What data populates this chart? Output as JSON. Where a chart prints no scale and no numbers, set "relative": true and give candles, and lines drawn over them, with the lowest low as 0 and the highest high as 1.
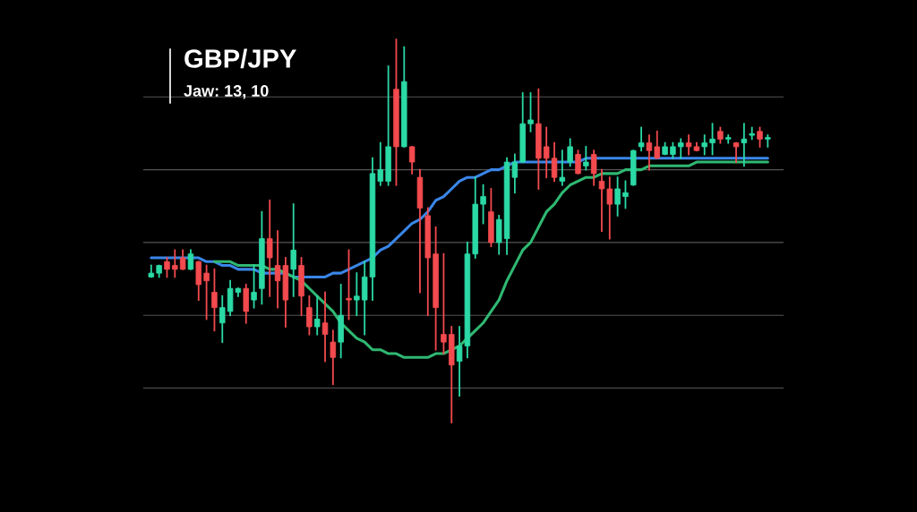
{
  "chart_data": {
    "type": "candlestick",
    "title": "GBP/JPY",
    "subtitle": "Jaw: 13, 10",
    "relative": true,
    "grid": "y",
    "categories": [
      null,
      null,
      null,
      null,
      null,
      null,
      null,
      null,
      null,
      null,
      null,
      null,
      null,
      null,
      null,
      null,
      null,
      null,
      null,
      null,
      null,
      null,
      null,
      null,
      null,
      null,
      null,
      null,
      null,
      null,
      null,
      null,
      null,
      null,
      null,
      null,
      null,
      null,
      null,
      null,
      null,
      null,
      null,
      null,
      null,
      null,
      null,
      null,
      null,
      null,
      null,
      null,
      null,
      null,
      null,
      null,
      null,
      null,
      null,
      null,
      null,
      null,
      null,
      null,
      null,
      null,
      null,
      null,
      null,
      null,
      null,
      null,
      null,
      null,
      null,
      null,
      null,
      null,
      null
    ],
    "ohlc": [
      [
        0.38,
        0.41,
        0.38,
        0.39
      ],
      [
        0.39,
        0.41,
        0.38,
        0.41
      ],
      [
        0.42,
        0.43,
        0.38,
        0.4
      ],
      [
        0.41,
        0.45,
        0.38,
        0.4
      ],
      [
        0.43,
        0.45,
        0.4,
        0.4
      ],
      [
        0.4,
        0.45,
        0.4,
        0.44
      ],
      [
        0.42,
        0.42,
        0.32,
        0.36
      ],
      [
        0.39,
        0.41,
        0.27,
        0.37
      ],
      [
        0.34,
        0.4,
        0.24,
        0.3
      ],
      [
        0.26,
        0.33,
        0.21,
        0.3
      ],
      [
        0.29,
        0.37,
        0.28,
        0.35
      ],
      [
        0.34,
        0.35,
        0.33,
        0.35
      ],
      [
        0.35,
        0.36,
        0.26,
        0.29
      ],
      [
        0.32,
        0.41,
        0.3,
        0.34
      ],
      [
        0.35,
        0.55,
        0.31,
        0.48
      ],
      [
        0.48,
        0.58,
        0.33,
        0.43
      ],
      [
        0.41,
        0.5,
        0.3,
        0.37
      ],
      [
        0.41,
        0.43,
        0.25,
        0.32
      ],
      [
        0.4,
        0.57,
        0.33,
        0.45
      ],
      [
        0.41,
        0.43,
        0.28,
        0.33
      ],
      [
        0.3,
        0.33,
        0.23,
        0.25
      ],
      [
        0.25,
        0.33,
        0.23,
        0.27
      ],
      [
        0.26,
        0.34,
        0.16,
        0.23
      ],
      [
        0.21,
        0.24,
        0.1,
        0.17
      ],
      [
        0.21,
        0.36,
        0.17,
        0.28
      ],
      [
        0.32,
        0.45,
        0.27,
        0.32
      ],
      [
        0.32,
        0.39,
        0.28,
        0.33
      ],
      [
        0.32,
        0.42,
        0.23,
        0.38
      ],
      [
        0.38,
        0.69,
        0.32,
        0.65
      ],
      [
        0.63,
        0.73,
        0.62,
        0.66
      ],
      [
        0.63,
        0.93,
        0.62,
        0.72
      ],
      [
        0.87,
        1.0,
        0.62,
        0.72
      ],
      [
        0.72,
        0.98,
        0.72,
        0.89
      ],
      [
        0.72,
        0.72,
        0.65,
        0.68
      ],
      [
        0.64,
        0.66,
        0.34,
        0.56
      ],
      [
        0.54,
        0.56,
        0.28,
        0.43
      ],
      [
        0.44,
        0.51,
        0.19,
        0.3
      ],
      [
        0.23,
        0.44,
        0.18,
        0.21
      ],
      [
        0.23,
        0.25,
        0.0,
        0.15
      ],
      [
        0.16,
        0.25,
        0.07,
        0.2
      ],
      [
        0.2,
        0.47,
        0.17,
        0.44
      ],
      [
        0.44,
        0.64,
        0.43,
        0.57
      ],
      [
        0.57,
        0.62,
        0.52,
        0.59
      ],
      [
        0.55,
        0.61,
        0.46,
        0.47
      ],
      [
        0.47,
        0.54,
        0.44,
        0.53
      ],
      [
        0.48,
        0.69,
        0.44,
        0.68
      ],
      [
        0.64,
        0.7,
        0.6,
        0.68
      ],
      [
        0.68,
        0.86,
        0.68,
        0.78
      ],
      [
        0.78,
        0.86,
        0.76,
        0.79
      ],
      [
        0.78,
        0.87,
        0.61,
        0.69
      ],
      [
        0.72,
        0.77,
        0.64,
        0.69
      ],
      [
        0.69,
        0.73,
        0.63,
        0.64
      ],
      [
        0.63,
        0.71,
        0.62,
        0.64
      ],
      [
        0.68,
        0.74,
        0.67,
        0.72
      ],
      [
        0.7,
        0.71,
        0.65,
        0.65
      ],
      [
        0.67,
        0.72,
        0.66,
        0.68
      ],
      [
        0.7,
        0.71,
        0.62,
        0.65
      ],
      [
        0.63,
        0.66,
        0.5,
        0.61
      ],
      [
        0.61,
        0.64,
        0.48,
        0.57
      ],
      [
        0.57,
        0.64,
        0.54,
        0.61
      ],
      [
        0.59,
        0.63,
        0.56,
        0.6
      ],
      [
        0.62,
        0.71,
        0.62,
        0.71
      ],
      [
        0.72,
        0.77,
        0.71,
        0.73
      ],
      [
        0.73,
        0.75,
        0.66,
        0.71
      ],
      [
        0.72,
        0.76,
        0.69,
        0.69
      ],
      [
        0.7,
        0.73,
        0.7,
        0.72
      ],
      [
        0.7,
        0.73,
        0.69,
        0.72
      ],
      [
        0.72,
        0.74,
        0.69,
        0.73
      ],
      [
        0.73,
        0.75,
        0.7,
        0.72
      ],
      [
        0.72,
        0.73,
        0.71,
        0.71
      ],
      [
        0.72,
        0.75,
        0.7,
        0.73
      ],
      [
        0.73,
        0.78,
        0.7,
        0.74
      ],
      [
        0.76,
        0.77,
        0.73,
        0.74
      ],
      [
        0.74,
        0.75,
        0.73,
        0.74
      ],
      [
        0.73,
        0.73,
        0.68,
        0.72
      ],
      [
        0.73,
        0.78,
        0.67,
        0.74
      ],
      [
        0.75,
        0.77,
        0.74,
        0.75
      ],
      [
        0.76,
        0.77,
        0.72,
        0.74
      ],
      [
        0.74,
        0.75,
        0.72,
        0.74
      ]
    ],
    "colors": [
      "#2bd9a5",
      "#2bd9a5",
      "#f24a4e",
      "#f24a4e",
      "#f24a4e",
      "#2bd9a5",
      "#f24a4e",
      "#f24a4e",
      "#f24a4e",
      "#2bd9a5",
      "#2bd9a5",
      "#2bd9a5",
      "#f24a4e",
      "#2bd9a5",
      "#2bd9a5",
      "#f24a4e",
      "#f24a4e",
      "#f24a4e",
      "#2bd9a5",
      "#f24a4e",
      "#f24a4e",
      "#2bd9a5",
      "#f24a4e",
      "#f24a4e",
      "#2bd9a5",
      "#f24a4e",
      "#2bd9a5",
      "#2bd9a5",
      "#2bd9a5",
      "#2bd9a5",
      "#2bd9a5",
      "#f24a4e",
      "#2bd9a5",
      "#f24a4e",
      "#f24a4e",
      "#f24a4e",
      "#f24a4e",
      "#f24a4e",
      "#f24a4e",
      "#2bd9a5",
      "#2bd9a5",
      "#2bd9a5",
      "#2bd9a5",
      "#f24a4e",
      "#2bd9a5",
      "#2bd9a5",
      "#2bd9a5",
      "#2bd9a5",
      "#2bd9a5",
      "#f24a4e",
      "#f24a4e",
      "#f24a4e",
      "#2bd9a5",
      "#2bd9a5",
      "#f24a4e",
      "#2bd9a5",
      "#f24a4e",
      "#f24a4e",
      "#f24a4e",
      "#2bd9a5",
      "#2bd9a5",
      "#2bd9a5",
      "#2bd9a5",
      "#f24a4e",
      "#f24a4e",
      "#2bd9a5",
      "#2bd9a5",
      "#2bd9a5",
      "#f24a4e",
      "#f24a4e",
      "#2bd9a5",
      "#2bd9a5",
      "#f24a4e",
      "#2bd9a5",
      "#f24a4e",
      "#2bd9a5",
      "#2bd9a5",
      "#f24a4e",
      "#2bd9a5"
    ],
    "series": [
      {
        "type": "line",
        "color": "#3a86e8",
        "values": [
          0.43,
          0.43,
          0.43,
          0.43,
          0.43,
          0.43,
          0.43,
          0.42,
          0.42,
          0.41,
          0.41,
          0.4,
          0.4,
          0.4,
          0.39,
          0.39,
          0.39,
          0.39,
          0.38,
          0.38,
          0.38,
          0.38,
          0.38,
          0.39,
          0.39,
          0.4,
          0.41,
          0.42,
          0.43,
          0.45,
          0.46,
          0.48,
          0.5,
          0.52,
          0.53,
          0.55,
          0.58,
          0.59,
          0.61,
          0.63,
          0.64,
          0.64,
          0.65,
          0.66,
          0.66,
          0.67,
          0.68,
          0.68,
          0.68,
          0.68,
          0.68,
          0.68,
          0.68,
          0.68,
          0.68,
          0.69,
          0.69,
          0.69,
          0.69,
          0.69,
          0.69,
          0.69,
          0.69,
          0.69,
          0.69,
          0.69,
          0.69,
          0.69,
          0.69,
          0.69,
          0.69,
          0.69,
          0.69,
          0.69,
          0.69,
          0.69,
          0.69,
          0.69,
          0.69
        ]
      },
      {
        "type": "line",
        "color": "#2fb872",
        "values": [
          null,
          null,
          null,
          null,
          null,
          null,
          null,
          null,
          0.42,
          0.42,
          0.42,
          0.41,
          0.41,
          0.41,
          0.41,
          0.4,
          0.4,
          0.39,
          0.38,
          0.37,
          0.35,
          0.33,
          0.31,
          0.29,
          0.26,
          0.24,
          0.22,
          0.21,
          0.19,
          0.19,
          0.18,
          0.18,
          0.17,
          0.17,
          0.17,
          0.17,
          0.18,
          0.18,
          0.19,
          0.2,
          0.22,
          0.24,
          0.26,
          0.29,
          0.32,
          0.37,
          0.41,
          0.45,
          0.47,
          0.51,
          0.55,
          0.57,
          0.6,
          0.62,
          0.63,
          0.64,
          0.64,
          0.65,
          0.65,
          0.65,
          0.66,
          0.66,
          0.66,
          0.67,
          0.67,
          0.67,
          0.67,
          0.67,
          0.67,
          0.68,
          0.68,
          0.68,
          0.68,
          0.68,
          0.68,
          0.68,
          0.68,
          0.68,
          0.68
        ]
      }
    ]
  }
}
